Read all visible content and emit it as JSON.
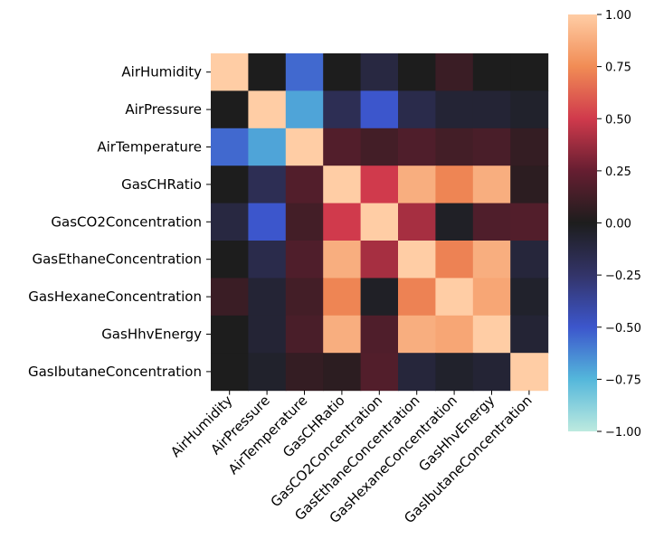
{
  "chart_data": {
    "type": "heatmap",
    "title": "",
    "xlabel": "",
    "ylabel": "",
    "variables": [
      "AirHumidity",
      "AirPressure",
      "AirTemperature",
      "GasCHRatio",
      "GasCO2Concentration",
      "GasEthaneConcentration",
      "GasHexaneConcentration",
      "GasHhvEnergy",
      "GasIbutaneConcentration"
    ],
    "values": [
      [
        1.0,
        0.0,
        -0.55,
        0.0,
        -0.12,
        0.0,
        0.1,
        0.0,
        0.0
      ],
      [
        0.0,
        1.0,
        -0.7,
        -0.18,
        -0.5,
        -0.15,
        -0.08,
        -0.08,
        -0.05
      ],
      [
        -0.55,
        -0.7,
        1.0,
        0.18,
        0.13,
        0.17,
        0.13,
        0.15,
        0.08
      ],
      [
        0.0,
        -0.18,
        0.18,
        1.0,
        0.5,
        0.88,
        0.73,
        0.88,
        0.05
      ],
      [
        -0.12,
        -0.5,
        0.13,
        0.5,
        1.0,
        0.4,
        -0.03,
        0.17,
        0.18
      ],
      [
        0.0,
        -0.15,
        0.17,
        0.88,
        0.4,
        1.0,
        0.72,
        0.88,
        -0.1
      ],
      [
        0.1,
        -0.08,
        0.13,
        0.73,
        -0.03,
        0.72,
        1.0,
        0.85,
        -0.05
      ],
      [
        0.0,
        -0.08,
        0.15,
        0.88,
        0.17,
        0.88,
        0.85,
        1.0,
        -0.08
      ],
      [
        0.0,
        -0.05,
        0.08,
        0.05,
        0.18,
        -0.1,
        -0.05,
        -0.08,
        1.0
      ]
    ],
    "colorbar": {
      "range": [
        -1.0,
        1.0
      ],
      "ticks": [
        "1.00",
        "0.75",
        "0.50",
        "0.25",
        "0.00",
        "−0.25",
        "−0.50",
        "−0.75",
        "−1.00"
      ]
    },
    "colormap": "icefire (diverging, centered at 0)",
    "grid": false,
    "legend": "colorbar right"
  }
}
